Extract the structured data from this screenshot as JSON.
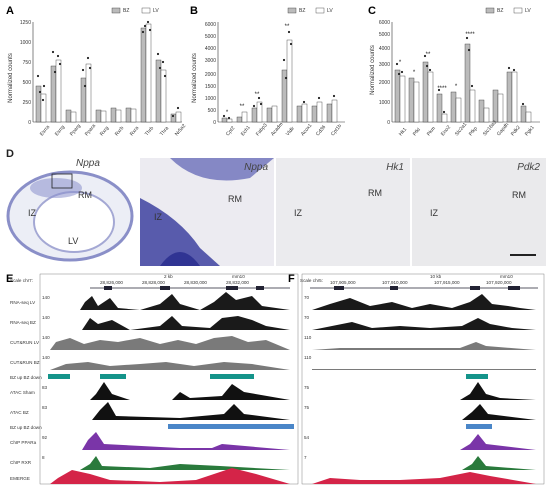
{
  "panels": {
    "A": {
      "label": "A",
      "legend": [
        "BZ",
        "LV"
      ],
      "ylabel": "Normalized counts",
      "yticks": [
        "0",
        "250",
        "500",
        "750",
        "1000",
        "1250"
      ],
      "genes": [
        "Esrra",
        "Esrrg",
        "Pparg",
        "Ppara",
        "Rxrg",
        "Rxrb",
        "Rxra",
        "Thrb",
        "Thra",
        "Nr5a2"
      ]
    },
    "B": {
      "label": "B",
      "legend": [
        "BZ",
        "LV"
      ],
      "ylabel": "Normalized counts",
      "yticks": [
        "0",
        "500",
        "1000",
        "1500",
        "2000",
        "3000",
        "4000",
        "5000",
        "6000"
      ],
      "genes": [
        "Cpt2",
        "Ech1",
        "Fabp3",
        "Acadm",
        "Vldlr",
        "Acox1",
        "Cd36",
        "Cpt1b"
      ],
      "stars": [
        "*",
        "**",
        "**",
        "**"
      ]
    },
    "C": {
      "label": "C",
      "legend": [
        "BZ",
        "LV"
      ],
      "ylabel": "Normalized counts",
      "yticks": [
        "0",
        "1000",
        "2000",
        "3000",
        "4000",
        "5000",
        "6000"
      ],
      "genes": [
        "Hk1",
        "Pfkl",
        "Pkm",
        "Eno2",
        "Slc2a1",
        "Pfkp",
        "Slc16a3",
        "Gapdh",
        "Pdk2",
        "Pgk1"
      ],
      "stars": [
        "*",
        "*",
        "**",
        "****",
        "*",
        "****"
      ]
    },
    "D": {
      "label": "D",
      "title": "Nppa",
      "overview": {
        "rm": "RM",
        "iz": "IZ",
        "lv": "LV"
      },
      "images": [
        {
          "caption": "Nppa",
          "rm": "RM",
          "iz": "IZ"
        },
        {
          "caption": "Hk1",
          "rm": "RM",
          "iz": "IZ"
        },
        {
          "caption": "Pdk2",
          "rm": "RM",
          "iz": "IZ"
        }
      ]
    },
    "E": {
      "label": "E",
      "scale_label": "Scale chr7:",
      "coords": [
        "28,826,000",
        "28,828,000",
        "28,830,000",
        "28,832,000"
      ],
      "scale_text": "2 kb",
      "assembly": "mm10",
      "tracks": [
        {
          "name": "RNA-seq LV",
          "value": "140"
        },
        {
          "name": "RNA-seq BZ",
          "value": "140"
        },
        {
          "name": "CUT&RUN LV",
          "value": "140"
        },
        {
          "name": "CUT&RUN BZ",
          "value": "140"
        },
        {
          "name": "BZ up BZ down",
          "value": ""
        },
        {
          "name": "ATAC Sham",
          "value": "83"
        },
        {
          "name": "ATAC BZ",
          "value": "83"
        },
        {
          "name": "BZ up BZ down",
          "value": ""
        },
        {
          "name": "ChIP PPARa",
          "value": "92"
        },
        {
          "name": "ChIP RXR",
          "value": "8"
        },
        {
          "name": "EMERGE",
          "value": ""
        }
      ]
    },
    "F": {
      "label": "F",
      "scale_label": "Scale chr5:",
      "coords": [
        "107,905,000",
        "107,910,000",
        "107,915,000",
        "107,920,000"
      ],
      "scale_text": "10 kb",
      "assembly": "mm10",
      "values": [
        "70",
        "70",
        "110",
        "110",
        "75",
        "75",
        "54",
        "7"
      ]
    }
  },
  "colors": {
    "rna": "#1a1a1a",
    "cutrun": "#7a7a7a",
    "peak_box": "#14948a",
    "atac": "#111111",
    "region": "#4a86c8",
    "chip_ppara": "#7a35a8",
    "chip_rxr": "#2a7a3c",
    "emerge": "#d42448",
    "stain": "#4a4fa8"
  }
}
